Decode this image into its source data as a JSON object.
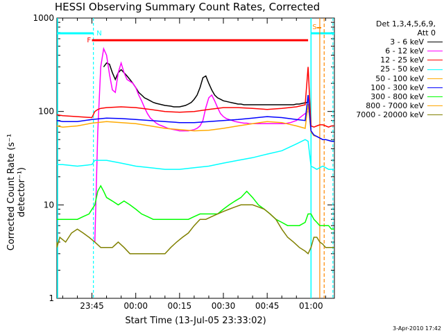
{
  "chart_data": {
    "type": "line",
    "title": "HESSI Observing Summary Count Rates, Corrected",
    "xlabel": "Start Time (13-Jul-05 23:33:02)",
    "ylabel": "Corrected Count Rate (s⁻¹ detector⁻¹)",
    "yscale": "log",
    "ylim": [
      1,
      1000
    ],
    "xlim_minutes_after_2330": [
      3,
      98
    ],
    "x_ticks": [
      "23:45",
      "00:00",
      "00:15",
      "00:30",
      "00:45",
      "01:00"
    ],
    "y_ticks": [
      "1",
      "10",
      "100",
      "1000"
    ],
    "legend_header": [
      "Det 1,3,4,5,6,9,",
      "Att 0"
    ],
    "legend_position": "right",
    "flags": [
      {
        "label": "N",
        "color": "#00ffff"
      },
      {
        "label": "F",
        "color": "#ff0000"
      },
      {
        "label": "S",
        "color": "#ff8800"
      }
    ],
    "series": [
      {
        "name": "3 - 6 keV",
        "color": "#000000",
        "x": [
          19,
          20,
          21,
          22,
          23,
          24,
          25,
          26,
          27,
          28,
          29,
          30,
          31,
          32,
          33,
          34,
          35,
          36,
          37,
          38,
          39,
          40,
          41,
          42,
          43,
          44,
          45,
          46,
          47,
          48,
          49,
          50,
          51,
          52,
          53,
          54,
          55,
          56,
          57,
          58,
          59,
          60,
          61,
          62,
          63,
          64,
          65,
          66,
          67,
          68,
          69,
          70,
          71,
          72,
          73,
          74,
          75,
          76,
          77,
          78,
          79,
          80,
          81,
          82,
          83,
          84,
          85,
          86,
          87,
          88,
          89
        ],
        "y": [
          300,
          330,
          320,
          260,
          220,
          260,
          280,
          260,
          240,
          220,
          200,
          180,
          160,
          150,
          140,
          135,
          130,
          125,
          122,
          120,
          118,
          116,
          115,
          114,
          112,
          112,
          112,
          114,
          116,
          120,
          125,
          135,
          150,
          180,
          230,
          240,
          200,
          170,
          150,
          140,
          135,
          130,
          128,
          126,
          124,
          122,
          120,
          120,
          118,
          118,
          118,
          118,
          118,
          118,
          118,
          118,
          118,
          118,
          118,
          118,
          118,
          118,
          118,
          118,
          118,
          118,
          120,
          120,
          122,
          124,
          126
        ]
      },
      {
        "name": "6 - 12 keV",
        "color": "#ff00ff",
        "x": [
          16,
          17,
          18,
          19,
          20,
          21,
          22,
          23,
          24,
          25,
          26,
          27,
          28,
          29,
          30,
          31,
          32,
          33,
          34,
          35,
          36,
          37,
          38,
          39,
          40,
          41,
          42,
          43,
          44,
          45,
          46,
          47,
          48,
          49,
          50,
          51,
          52,
          53,
          54,
          55,
          56,
          57,
          58,
          59,
          60,
          61,
          62,
          63,
          64,
          65,
          66,
          67,
          68,
          69,
          70,
          71,
          72,
          73,
          74,
          75,
          76,
          77,
          78,
          79,
          80,
          81,
          82,
          83,
          84,
          85,
          86,
          87,
          88,
          89
        ],
        "y": [
          4,
          60,
          300,
          470,
          400,
          250,
          170,
          160,
          260,
          330,
          260,
          220,
          210,
          200,
          180,
          150,
          130,
          110,
          95,
          85,
          80,
          75,
          72,
          70,
          68,
          66,
          65,
          64,
          63,
          62,
          62,
          62,
          62,
          63,
          64,
          66,
          70,
          80,
          110,
          140,
          150,
          130,
          110,
          95,
          88,
          84,
          82,
          80,
          78,
          77,
          76,
          75,
          75,
          74,
          74,
          74,
          74,
          74,
          74,
          74,
          74,
          74,
          74,
          74,
          74,
          74,
          75,
          76,
          78,
          80,
          85,
          90,
          95,
          100
        ]
      },
      {
        "name": "12 - 25 keV",
        "color": "#ff0000",
        "x": [
          0,
          5,
          10,
          15,
          16,
          17,
          18,
          20,
          25,
          30,
          35,
          40,
          45,
          50,
          55,
          60,
          65,
          70,
          75,
          80,
          85,
          88,
          89,
          90,
          91,
          92,
          93,
          94,
          95,
          96,
          97,
          98
        ],
        "y": [
          92,
          90,
          88,
          86,
          100,
          105,
          108,
          110,
          112,
          110,
          105,
          100,
          98,
          100,
          105,
          110,
          110,
          108,
          105,
          108,
          112,
          118,
          300,
          70,
          68,
          70,
          72,
          72,
          70,
          68,
          70,
          70
        ]
      },
      {
        "name": "25 - 50 keV",
        "color": "#00ffff",
        "x": [
          0,
          5,
          10,
          15,
          16,
          20,
          25,
          30,
          35,
          40,
          45,
          50,
          55,
          60,
          65,
          70,
          75,
          80,
          85,
          88,
          89,
          90,
          91,
          92,
          93,
          94,
          95,
          96,
          97,
          98
        ],
        "y": [
          27,
          27,
          26,
          27,
          30,
          30,
          28,
          26,
          25,
          24,
          24,
          25,
          26,
          28,
          30,
          32,
          35,
          38,
          45,
          50,
          48,
          26,
          25,
          24,
          25,
          26,
          25,
          24,
          24,
          24
        ]
      },
      {
        "name": "50 - 100 keV",
        "color": "#ffaa00",
        "x": [
          0,
          5,
          10,
          15,
          20,
          25,
          30,
          35,
          40,
          45,
          50,
          55,
          60,
          65,
          70,
          75,
          80,
          85,
          88,
          89,
          90,
          91,
          92,
          93,
          94,
          95,
          96,
          97,
          98
        ],
        "y": [
          70,
          68,
          70,
          75,
          78,
          76,
          74,
          70,
          66,
          64,
          62,
          63,
          66,
          70,
          74,
          78,
          76,
          70,
          66,
          120,
          60,
          55,
          54,
          52,
          50,
          50,
          49,
          48,
          48
        ]
      },
      {
        "name": "100 - 300 keV",
        "color": "#0000ff",
        "x": [
          0,
          5,
          10,
          15,
          20,
          25,
          30,
          35,
          40,
          45,
          50,
          55,
          60,
          65,
          70,
          75,
          80,
          85,
          88,
          89,
          90,
          91,
          92,
          93,
          94,
          95,
          96,
          97,
          98
        ],
        "y": [
          80,
          78,
          78,
          82,
          85,
          84,
          82,
          80,
          78,
          76,
          76,
          78,
          80,
          82,
          85,
          88,
          86,
          82,
          80,
          150,
          62,
          56,
          54,
          52,
          50,
          50,
          49,
          48,
          48
        ]
      },
      {
        "name": "300 - 800 keV",
        "color": "#00ff00",
        "x": [
          0,
          2,
          4,
          6,
          8,
          10,
          12,
          14,
          16,
          17,
          18,
          19,
          20,
          22,
          24,
          26,
          28,
          30,
          32,
          34,
          36,
          38,
          40,
          42,
          44,
          46,
          48,
          50,
          52,
          54,
          56,
          58,
          60,
          62,
          64,
          66,
          68,
          70,
          72,
          74,
          76,
          78,
          80,
          82,
          84,
          86,
          88,
          89,
          90,
          91,
          92,
          93,
          94,
          95,
          96,
          97,
          98
        ],
        "y": [
          7,
          7,
          7,
          7,
          7,
          7,
          7.5,
          8,
          10,
          14,
          16,
          14,
          12,
          11,
          10,
          11,
          10,
          9,
          8,
          7.5,
          7,
          7,
          7,
          7,
          7,
          7,
          7,
          7.5,
          8,
          8,
          8,
          8,
          9,
          10,
          11,
          12,
          14,
          12,
          10,
          9,
          8,
          7,
          6.5,
          6,
          6,
          6,
          6.5,
          8,
          8,
          7,
          6.5,
          6,
          6,
          6,
          6,
          5.5,
          5.5
        ]
      },
      {
        "name": "800 - 7000 keV",
        "color": "#ffa500",
        "x": [],
        "y": []
      },
      {
        "name": "7000 - 20000 keV",
        "color": "#808000",
        "x": [
          0,
          2,
          4,
          6,
          8,
          10,
          12,
          14,
          16,
          18,
          20,
          22,
          24,
          26,
          28,
          30,
          32,
          34,
          36,
          38,
          40,
          42,
          44,
          46,
          48,
          50,
          52,
          54,
          56,
          58,
          60,
          62,
          64,
          66,
          68,
          70,
          72,
          74,
          76,
          78,
          80,
          82,
          84,
          86,
          88,
          89,
          90,
          91,
          92,
          93,
          94,
          95,
          96,
          97,
          98
        ],
        "y": [
          4,
          3.5,
          4.5,
          4,
          5,
          5.5,
          5,
          4.5,
          4,
          3.5,
          3.5,
          3.5,
          4,
          3.5,
          3,
          3,
          3,
          3,
          3,
          3,
          3,
          3.5,
          4,
          4.5,
          5,
          6,
          7,
          7,
          7.5,
          8,
          8.5,
          9,
          9.5,
          10,
          10,
          10,
          9.5,
          9,
          8,
          7,
          5.5,
          4.5,
          4,
          3.5,
          3.2,
          3,
          3.5,
          4.5,
          4.5,
          4,
          3.8,
          3.5,
          3.5,
          3.5,
          3.5
        ]
      }
    ]
  },
  "footer_stamp": "3-Apr-2010 17:42"
}
